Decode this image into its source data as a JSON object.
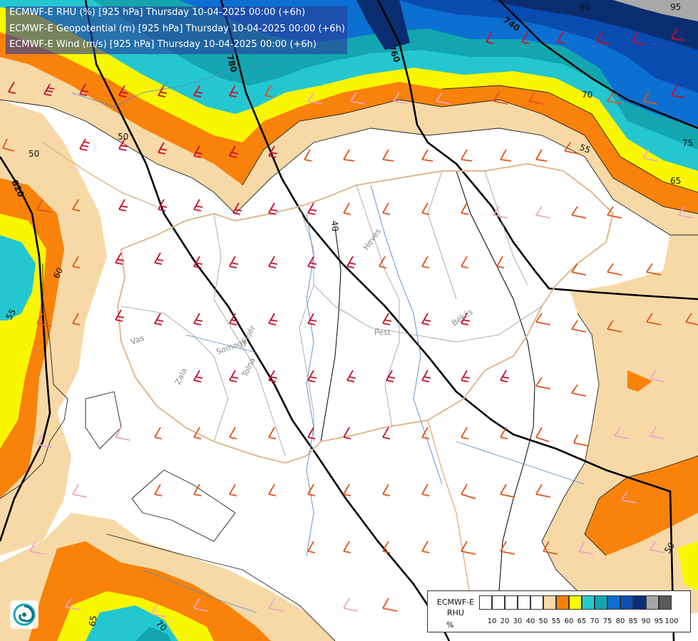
{
  "titles": {
    "line1": "ECMWF-E RHU (%) [925 hPa] Thursday 10-04-2025 00:00 (+6h)",
    "line2": "ECMWF-E Geopotential (m) [925 hPa] Thursday 10-04-2025 00:00 (+6h)",
    "line3": "ECMWF-E Wind (m/s) [925 hPa] Thursday 10-04-2025 00:00 (+6h)"
  },
  "map_labels": {
    "heves": "Heves",
    "pest": "Pest",
    "bekes": "Békés",
    "vas": "Vas",
    "somogy": "Somogy",
    "fejer": "Fejér",
    "zala": "Zala",
    "tolna": "Tolna"
  },
  "contour_labels": {
    "geo_740": "740",
    "geo_760": "760",
    "geo_780": "780",
    "geo_820": "820",
    "rh_50a": "50",
    "rh_50b": "50",
    "rh_60": "60",
    "rh_55a": "55",
    "rh_55b": "55",
    "rh_65a": "65",
    "rh_65b": "65",
    "rh_70a": "70",
    "rh_70b": "70",
    "rh_75": "75",
    "rh_40": "40",
    "rh_50c": "50",
    "rh_90": "90",
    "rh_95": "95"
  },
  "legend": {
    "name_line1": "ECMWF-E",
    "name_line2": "RHU",
    "unit": "%",
    "levels": [
      "10",
      "20",
      "30",
      "40",
      "50",
      "55",
      "60",
      "65",
      "70",
      "75",
      "80",
      "85",
      "90",
      "95",
      "100"
    ],
    "colors": [
      "#ffffff",
      "#ffffff",
      "#ffffff",
      "#ffffff",
      "#ffffff",
      "#f8d9a8",
      "#f68205",
      "#fafa00",
      "#27c8d0",
      "#12a5b0",
      "#0d6fd4",
      "#0b4fb6",
      "#082f78",
      "#a6a6a6",
      "#5a5a5a"
    ]
  },
  "colors": {
    "rh_white": "#ffffff",
    "rh_beige": "#f6d9a6",
    "rh_orange": "#f8820a",
    "rh_yellow": "#f9f700",
    "rh_cyan": "#24c7d0",
    "rh_teal": "#13a6b0",
    "rh_blue": "#0c6fd2",
    "rh_darkblue": "#0a4bb0",
    "rh_navy": "#0a2d72",
    "rh_grey": "#a8a8a8",
    "border": "#e0b890",
    "river": "#5a8bc6",
    "barb_red": "#c8102e",
    "barb_orange": "#e3531a",
    "barb_pink": "#f0a6c8"
  },
  "icons": {
    "logo": "ecmwf-swirl-logo"
  }
}
